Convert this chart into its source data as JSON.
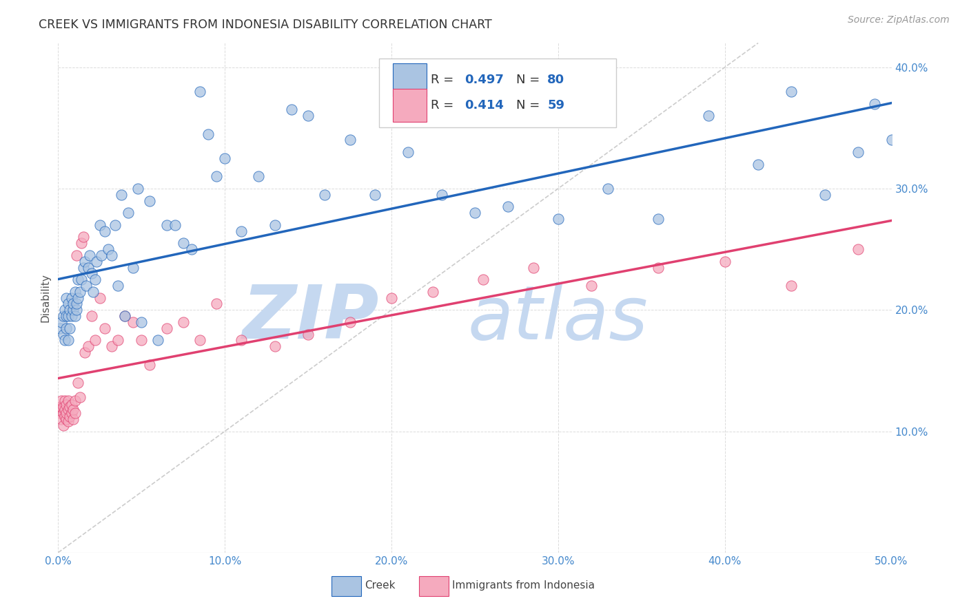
{
  "title": "CREEK VS IMMIGRANTS FROM INDONESIA DISABILITY CORRELATION CHART",
  "source": "Source: ZipAtlas.com",
  "ylabel": "Disability",
  "x_min": 0.0,
  "x_max": 0.5,
  "y_min": 0.0,
  "y_max": 0.42,
  "x_ticks": [
    0.0,
    0.1,
    0.2,
    0.3,
    0.4,
    0.5
  ],
  "y_ticks": [
    0.0,
    0.1,
    0.2,
    0.3,
    0.4
  ],
  "x_tick_labels": [
    "0.0%",
    "10.0%",
    "20.0%",
    "30.0%",
    "40.0%",
    "50.0%"
  ],
  "y_tick_labels": [
    "",
    "10.0%",
    "20.0%",
    "30.0%",
    "40.0%"
  ],
  "legend_creek": "Creek",
  "legend_indonesia": "Immigrants from Indonesia",
  "creek_R": 0.497,
  "creek_N": 80,
  "indonesia_R": 0.414,
  "indonesia_N": 59,
  "creek_color": "#aac4e2",
  "creek_line_color": "#2266bb",
  "indonesia_color": "#f5aabe",
  "indonesia_line_color": "#e04070",
  "diagonal_color": "#cccccc",
  "grid_color": "#cccccc",
  "title_color": "#333333",
  "axis_label_color": "#4488cc",
  "watermark_color": "#c5d8f0",
  "creek_x": [
    0.001,
    0.002,
    0.003,
    0.003,
    0.004,
    0.004,
    0.005,
    0.005,
    0.005,
    0.006,
    0.006,
    0.006,
    0.007,
    0.007,
    0.008,
    0.008,
    0.009,
    0.009,
    0.01,
    0.01,
    0.011,
    0.011,
    0.012,
    0.012,
    0.013,
    0.014,
    0.015,
    0.016,
    0.017,
    0.018,
    0.019,
    0.02,
    0.021,
    0.022,
    0.023,
    0.025,
    0.026,
    0.028,
    0.03,
    0.032,
    0.034,
    0.036,
    0.038,
    0.04,
    0.042,
    0.045,
    0.048,
    0.05,
    0.055,
    0.06,
    0.065,
    0.07,
    0.075,
    0.08,
    0.085,
    0.09,
    0.095,
    0.1,
    0.11,
    0.12,
    0.13,
    0.14,
    0.15,
    0.16,
    0.175,
    0.19,
    0.21,
    0.23,
    0.25,
    0.27,
    0.3,
    0.33,
    0.36,
    0.39,
    0.42,
    0.44,
    0.46,
    0.48,
    0.49,
    0.5
  ],
  "creek_y": [
    0.185,
    0.19,
    0.18,
    0.195,
    0.175,
    0.2,
    0.195,
    0.185,
    0.21,
    0.175,
    0.195,
    0.205,
    0.185,
    0.2,
    0.195,
    0.21,
    0.2,
    0.205,
    0.195,
    0.215,
    0.2,
    0.205,
    0.21,
    0.225,
    0.215,
    0.225,
    0.235,
    0.24,
    0.22,
    0.235,
    0.245,
    0.23,
    0.215,
    0.225,
    0.24,
    0.27,
    0.245,
    0.265,
    0.25,
    0.245,
    0.27,
    0.22,
    0.295,
    0.195,
    0.28,
    0.235,
    0.3,
    0.19,
    0.29,
    0.175,
    0.27,
    0.27,
    0.255,
    0.25,
    0.38,
    0.345,
    0.31,
    0.325,
    0.265,
    0.31,
    0.27,
    0.365,
    0.36,
    0.295,
    0.34,
    0.295,
    0.33,
    0.295,
    0.28,
    0.285,
    0.275,
    0.3,
    0.275,
    0.36,
    0.32,
    0.38,
    0.295,
    0.33,
    0.37,
    0.34
  ],
  "indonesia_x": [
    0.001,
    0.001,
    0.002,
    0.002,
    0.002,
    0.003,
    0.003,
    0.003,
    0.004,
    0.004,
    0.004,
    0.005,
    0.005,
    0.005,
    0.006,
    0.006,
    0.006,
    0.007,
    0.007,
    0.008,
    0.008,
    0.009,
    0.009,
    0.01,
    0.01,
    0.011,
    0.012,
    0.013,
    0.014,
    0.015,
    0.016,
    0.018,
    0.02,
    0.022,
    0.025,
    0.028,
    0.032,
    0.036,
    0.04,
    0.045,
    0.05,
    0.055,
    0.065,
    0.075,
    0.085,
    0.095,
    0.11,
    0.13,
    0.15,
    0.175,
    0.2,
    0.225,
    0.255,
    0.285,
    0.32,
    0.36,
    0.4,
    0.44,
    0.48
  ],
  "indonesia_y": [
    0.115,
    0.12,
    0.11,
    0.12,
    0.125,
    0.105,
    0.115,
    0.12,
    0.112,
    0.118,
    0.125,
    0.11,
    0.115,
    0.122,
    0.108,
    0.118,
    0.125,
    0.112,
    0.12,
    0.115,
    0.122,
    0.11,
    0.118,
    0.115,
    0.125,
    0.245,
    0.14,
    0.128,
    0.255,
    0.26,
    0.165,
    0.17,
    0.195,
    0.175,
    0.21,
    0.185,
    0.17,
    0.175,
    0.195,
    0.19,
    0.175,
    0.155,
    0.185,
    0.19,
    0.175,
    0.205,
    0.175,
    0.17,
    0.18,
    0.19,
    0.21,
    0.215,
    0.225,
    0.235,
    0.22,
    0.235,
    0.24,
    0.22,
    0.25
  ]
}
